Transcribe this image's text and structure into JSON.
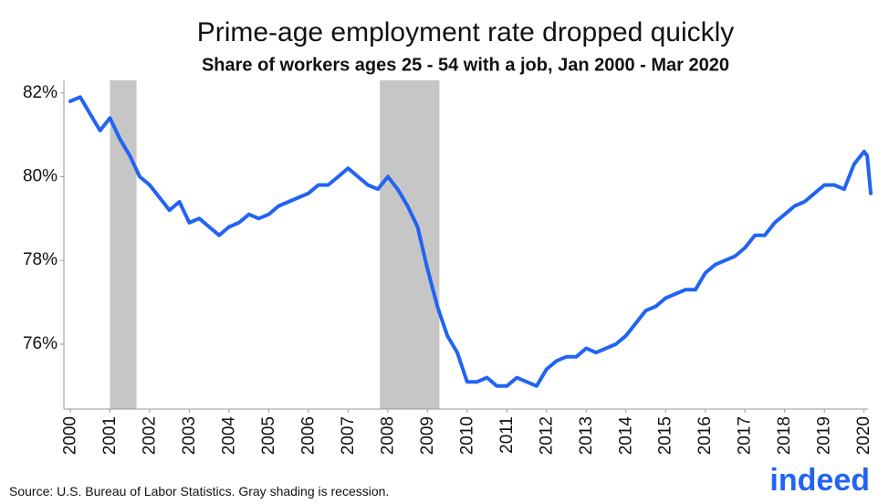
{
  "chart_data": {
    "type": "line",
    "title": "Prime-age employment rate dropped quickly",
    "subtitle": "Share of workers ages 25 - 54 with a job, Jan 2000 - Mar 2020",
    "source": "U.S. Bureau of Labor Statistics. Gray shading is recession.",
    "source_label": "Source:",
    "logo": "indeed",
    "x": [
      2000,
      2000.25,
      2000.5,
      2000.75,
      2001,
      2001.25,
      2001.5,
      2001.75,
      2002,
      2002.25,
      2002.5,
      2002.75,
      2003,
      2003.25,
      2003.5,
      2003.75,
      2004,
      2004.25,
      2004.5,
      2004.75,
      2005,
      2005.25,
      2005.5,
      2005.75,
      2006,
      2006.25,
      2006.5,
      2006.75,
      2007,
      2007.25,
      2007.5,
      2007.75,
      2008,
      2008.25,
      2008.5,
      2008.75,
      2009,
      2009.25,
      2009.5,
      2009.75,
      2010,
      2010.25,
      2010.5,
      2010.75,
      2011,
      2011.25,
      2011.5,
      2011.75,
      2012,
      2012.25,
      2012.5,
      2012.75,
      2013,
      2013.25,
      2013.5,
      2013.75,
      2014,
      2014.25,
      2014.5,
      2014.75,
      2015,
      2015.25,
      2015.5,
      2015.75,
      2016,
      2016.25,
      2016.5,
      2016.75,
      2017,
      2017.25,
      2017.5,
      2017.75,
      2018,
      2018.25,
      2018.5,
      2018.75,
      2019,
      2019.25,
      2019.5,
      2019.75,
      2020,
      2020.08,
      2020.17
    ],
    "series": [
      {
        "name": "Prime-age employment rate",
        "color": "#2164f3",
        "values": [
          81.8,
          81.9,
          81.5,
          81.1,
          81.4,
          80.9,
          80.5,
          80.0,
          79.8,
          79.5,
          79.2,
          79.4,
          78.9,
          79.0,
          78.8,
          78.6,
          78.8,
          78.9,
          79.1,
          79.0,
          79.1,
          79.3,
          79.4,
          79.5,
          79.6,
          79.8,
          79.8,
          80.0,
          80.2,
          80.0,
          79.8,
          79.7,
          80.0,
          79.7,
          79.3,
          78.8,
          77.8,
          76.9,
          76.2,
          75.8,
          75.1,
          75.1,
          75.2,
          75.0,
          75.0,
          75.2,
          75.1,
          75.0,
          75.4,
          75.6,
          75.7,
          75.7,
          75.9,
          75.8,
          75.9,
          76.0,
          76.2,
          76.5,
          76.8,
          76.9,
          77.1,
          77.2,
          77.3,
          77.3,
          77.7,
          77.9,
          78.0,
          78.1,
          78.3,
          78.6,
          78.6,
          78.9,
          79.1,
          79.3,
          79.4,
          79.6,
          79.8,
          79.8,
          79.7,
          80.3,
          80.6,
          80.5,
          79.6
        ]
      }
    ],
    "recessions": [
      [
        2001.0,
        2001.67
      ],
      [
        2007.8,
        2009.3
      ]
    ],
    "recession_color": "#c6c6c6",
    "xlim": [
      2000,
      2020.1
    ],
    "xticks": [
      2000,
      2001,
      2002,
      2003,
      2004,
      2005,
      2006,
      2007,
      2008,
      2009,
      2010,
      2011,
      2012,
      2013,
      2014,
      2015,
      2016,
      2017,
      2018,
      2019,
      2020
    ],
    "ylim": [
      74.45,
      82.3
    ],
    "yticks": [
      {
        "value": 76,
        "label": "76%"
      },
      {
        "value": 78,
        "label": "78%"
      },
      {
        "value": 80,
        "label": "80%"
      },
      {
        "value": 82,
        "label": "82%"
      }
    ],
    "grid": false
  }
}
